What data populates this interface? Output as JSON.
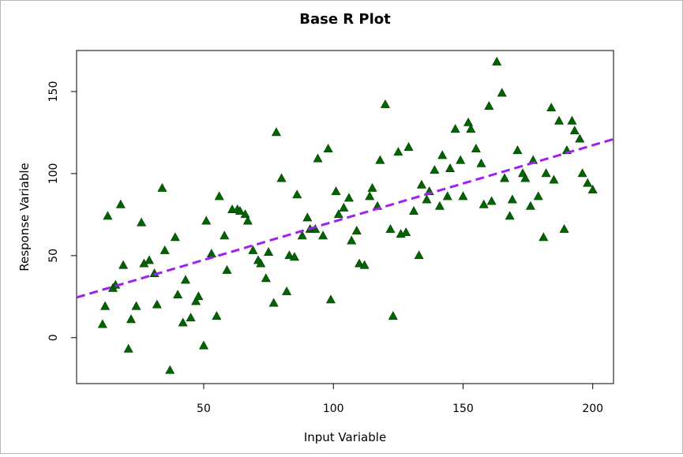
{
  "chart_data": {
    "type": "scatter",
    "title": "Base R Plot",
    "xlabel": "Input Variable",
    "ylabel": "Response Variable",
    "xlim": [
      1,
      208
    ],
    "ylim": [
      -28,
      175
    ],
    "x_ticks": [
      50,
      100,
      150,
      200
    ],
    "y_ticks": [
      0,
      50,
      100,
      150
    ],
    "x_tick_labels": [
      "50",
      "100",
      "150",
      "200"
    ],
    "y_tick_labels": [
      "0",
      "50",
      "100",
      "150"
    ],
    "grid": false,
    "legend": "none",
    "colors": {
      "points": "#006400",
      "regression_line": "#a020f0",
      "axis": "#000000"
    },
    "regression_line": {
      "style": "dashed",
      "x": [
        1,
        208
      ],
      "y": [
        24.5,
        121
      ]
    },
    "points": [
      {
        "x": 11,
        "y": 8
      },
      {
        "x": 12,
        "y": 19
      },
      {
        "x": 13,
        "y": 74
      },
      {
        "x": 15,
        "y": 30
      },
      {
        "x": 16,
        "y": 32
      },
      {
        "x": 18,
        "y": 81
      },
      {
        "x": 19,
        "y": 44
      },
      {
        "x": 21,
        "y": -7
      },
      {
        "x": 22,
        "y": 11
      },
      {
        "x": 24,
        "y": 19
      },
      {
        "x": 26,
        "y": 70
      },
      {
        "x": 27,
        "y": 45
      },
      {
        "x": 29,
        "y": 47
      },
      {
        "x": 31,
        "y": 39
      },
      {
        "x": 32,
        "y": 20
      },
      {
        "x": 34,
        "y": 91
      },
      {
        "x": 35,
        "y": 53
      },
      {
        "x": 37,
        "y": -20
      },
      {
        "x": 39,
        "y": 61
      },
      {
        "x": 40,
        "y": 26
      },
      {
        "x": 42,
        "y": 9
      },
      {
        "x": 43,
        "y": 35
      },
      {
        "x": 45,
        "y": 12
      },
      {
        "x": 47,
        "y": 22
      },
      {
        "x": 48,
        "y": 25
      },
      {
        "x": 50,
        "y": -5
      },
      {
        "x": 51,
        "y": 71
      },
      {
        "x": 53,
        "y": 51
      },
      {
        "x": 55,
        "y": 13
      },
      {
        "x": 56,
        "y": 86
      },
      {
        "x": 58,
        "y": 62
      },
      {
        "x": 59,
        "y": 41
      },
      {
        "x": 61,
        "y": 78
      },
      {
        "x": 63,
        "y": 78
      },
      {
        "x": 64,
        "y": 77
      },
      {
        "x": 66,
        "y": 75
      },
      {
        "x": 67,
        "y": 71
      },
      {
        "x": 69,
        "y": 53
      },
      {
        "x": 71,
        "y": 47
      },
      {
        "x": 72,
        "y": 45
      },
      {
        "x": 74,
        "y": 36
      },
      {
        "x": 75,
        "y": 52
      },
      {
        "x": 77,
        "y": 21
      },
      {
        "x": 78,
        "y": 125
      },
      {
        "x": 80,
        "y": 97
      },
      {
        "x": 82,
        "y": 28
      },
      {
        "x": 83,
        "y": 50
      },
      {
        "x": 85,
        "y": 49
      },
      {
        "x": 86,
        "y": 87
      },
      {
        "x": 88,
        "y": 62
      },
      {
        "x": 90,
        "y": 73
      },
      {
        "x": 91,
        "y": 66
      },
      {
        "x": 93,
        "y": 66
      },
      {
        "x": 94,
        "y": 109
      },
      {
        "x": 96,
        "y": 62
      },
      {
        "x": 98,
        "y": 115
      },
      {
        "x": 99,
        "y": 23
      },
      {
        "x": 101,
        "y": 89
      },
      {
        "x": 102,
        "y": 75
      },
      {
        "x": 104,
        "y": 79
      },
      {
        "x": 106,
        "y": 85
      },
      {
        "x": 107,
        "y": 59
      },
      {
        "x": 109,
        "y": 65
      },
      {
        "x": 110,
        "y": 45
      },
      {
        "x": 112,
        "y": 44
      },
      {
        "x": 114,
        "y": 86
      },
      {
        "x": 115,
        "y": 91
      },
      {
        "x": 117,
        "y": 80
      },
      {
        "x": 118,
        "y": 108
      },
      {
        "x": 120,
        "y": 142
      },
      {
        "x": 122,
        "y": 66
      },
      {
        "x": 123,
        "y": 13
      },
      {
        "x": 125,
        "y": 113
      },
      {
        "x": 126,
        "y": 63
      },
      {
        "x": 128,
        "y": 64
      },
      {
        "x": 129,
        "y": 116
      },
      {
        "x": 131,
        "y": 77
      },
      {
        "x": 133,
        "y": 50
      },
      {
        "x": 134,
        "y": 93
      },
      {
        "x": 136,
        "y": 84
      },
      {
        "x": 137,
        "y": 89
      },
      {
        "x": 139,
        "y": 102
      },
      {
        "x": 141,
        "y": 80
      },
      {
        "x": 142,
        "y": 111
      },
      {
        "x": 144,
        "y": 86
      },
      {
        "x": 145,
        "y": 103
      },
      {
        "x": 147,
        "y": 127
      },
      {
        "x": 149,
        "y": 108
      },
      {
        "x": 150,
        "y": 86
      },
      {
        "x": 152,
        "y": 131
      },
      {
        "x": 153,
        "y": 127
      },
      {
        "x": 155,
        "y": 115
      },
      {
        "x": 157,
        "y": 106
      },
      {
        "x": 158,
        "y": 81
      },
      {
        "x": 160,
        "y": 141
      },
      {
        "x": 161,
        "y": 83
      },
      {
        "x": 163,
        "y": 168
      },
      {
        "x": 165,
        "y": 149
      },
      {
        "x": 166,
        "y": 97
      },
      {
        "x": 168,
        "y": 74
      },
      {
        "x": 169,
        "y": 84
      },
      {
        "x": 171,
        "y": 114
      },
      {
        "x": 173,
        "y": 100
      },
      {
        "x": 174,
        "y": 97
      },
      {
        "x": 176,
        "y": 80
      },
      {
        "x": 177,
        "y": 108
      },
      {
        "x": 179,
        "y": 86
      },
      {
        "x": 181,
        "y": 61
      },
      {
        "x": 182,
        "y": 100
      },
      {
        "x": 184,
        "y": 140
      },
      {
        "x": 185,
        "y": 96
      },
      {
        "x": 187,
        "y": 132
      },
      {
        "x": 189,
        "y": 66
      },
      {
        "x": 190,
        "y": 114
      },
      {
        "x": 192,
        "y": 132
      },
      {
        "x": 193,
        "y": 126
      },
      {
        "x": 195,
        "y": 121
      },
      {
        "x": 196,
        "y": 100
      },
      {
        "x": 198,
        "y": 94
      },
      {
        "x": 200,
        "y": 90
      }
    ]
  }
}
